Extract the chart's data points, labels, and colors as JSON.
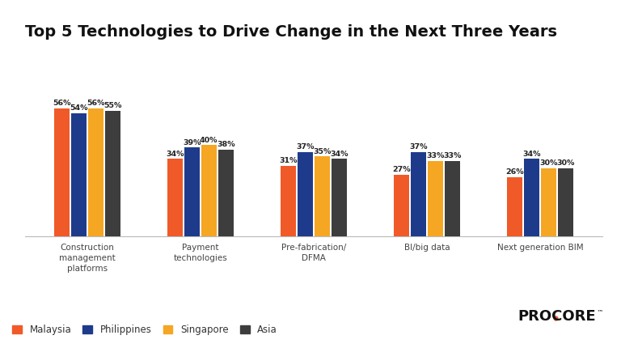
{
  "title": "Top 5 Technologies to Drive Change in the Next Three Years",
  "categories": [
    "Construction\nmanagement\nplatforms",
    "Payment\ntechnologies",
    "Pre-fabrication/\nDFMA",
    "BI/big data",
    "Next generation BIM"
  ],
  "series": {
    "Malaysia": [
      56,
      34,
      31,
      27,
      26
    ],
    "Philippines": [
      54,
      39,
      37,
      37,
      34
    ],
    "Singapore": [
      56,
      40,
      35,
      33,
      30
    ],
    "Asia": [
      55,
      38,
      34,
      33,
      30
    ]
  },
  "colors": {
    "Malaysia": "#F05A28",
    "Philippines": "#1E3A8A",
    "Singapore": "#F5A623",
    "Asia": "#3D3D3D"
  },
  "legend_order": [
    "Malaysia",
    "Philippines",
    "Singapore",
    "Asia"
  ],
  "background_color": "#FFFFFF",
  "title_fontsize": 14,
  "label_fontsize": 7.5,
  "bar_value_fontsize": 6.8,
  "ylim": [
    0,
    70
  ],
  "group_width": 0.6
}
